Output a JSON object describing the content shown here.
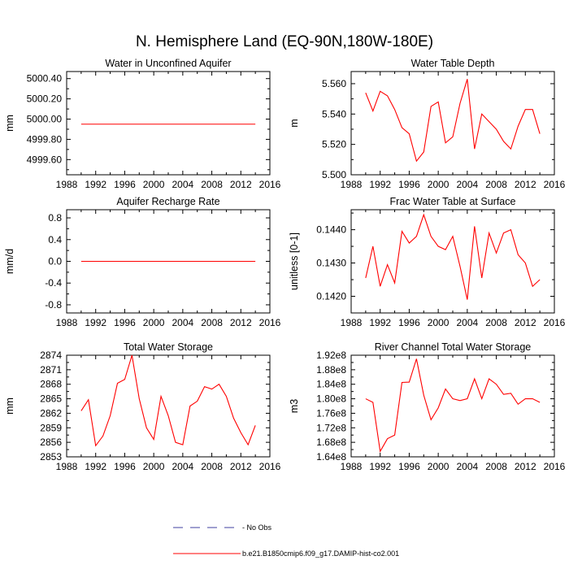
{
  "title": "N. Hemisphere Land (EQ-90N,180W-180E)",
  "colors": {
    "model_line": "#ff0000",
    "obs_line": "#4040a0",
    "axes": "#000000"
  },
  "legend": {
    "placement": "bottom-center",
    "entries": [
      {
        "label": "No Obs",
        "style": "dashed",
        "color": "#4040a0"
      },
      {
        "label": "b.e21.B1850cmip6.f09_g17.DAMIP-hist-co2.001",
        "style": "solid",
        "color": "#ff0000"
      }
    ]
  },
  "chart_data": [
    {
      "type": "line",
      "title": "Water in Unconfined Aquifer",
      "ylabel": "mm",
      "xlim": [
        1988,
        2016
      ],
      "ylim": [
        4999.45,
        5000.47
      ],
      "xticks": [
        "1988",
        "1992",
        "1996",
        "2000",
        "2004",
        "2008",
        "2012",
        "2016"
      ],
      "yticks": [
        "5000.40",
        "5000.20",
        "5000.00",
        "4999.80",
        "4999.60"
      ],
      "series": [
        {
          "x": [
            1990,
            1991,
            1992,
            1993,
            1994,
            1995,
            1996,
            1997,
            1998,
            1999,
            2000,
            2001,
            2002,
            2003,
            2004,
            2005,
            2006,
            2007,
            2008,
            2009,
            2010,
            2011,
            2012,
            2013,
            2014
          ],
          "y": [
            4999.95,
            4999.95,
            4999.95,
            4999.95,
            4999.95,
            4999.95,
            4999.95,
            4999.95,
            4999.95,
            4999.95,
            4999.95,
            4999.95,
            4999.95,
            4999.95,
            4999.95,
            4999.95,
            4999.95,
            4999.95,
            4999.95,
            4999.95,
            4999.95,
            4999.95,
            4999.95,
            4999.95,
            4999.95
          ]
        }
      ]
    },
    {
      "type": "line",
      "title": "Water Table Depth",
      "ylabel": "m",
      "xlim": [
        1988,
        2016
      ],
      "ylim": [
        5.5,
        5.568
      ],
      "xticks": [
        "1988",
        "1992",
        "1996",
        "2000",
        "2004",
        "2008",
        "2012",
        "2016"
      ],
      "yticks": [
        "5.560",
        "5.540",
        "5.520",
        "5.500"
      ],
      "series": [
        {
          "x": [
            1990,
            1991,
            1992,
            1993,
            1994,
            1995,
            1996,
            1997,
            1998,
            1999,
            2000,
            2001,
            2002,
            2003,
            2004,
            2005,
            2006,
            2007,
            2008,
            2009,
            2010,
            2011,
            2012,
            2013,
            2014
          ],
          "y": [
            5.554,
            5.542,
            5.555,
            5.552,
            5.543,
            5.531,
            5.527,
            5.509,
            5.515,
            5.545,
            5.548,
            5.521,
            5.525,
            5.547,
            5.563,
            5.517,
            5.54,
            5.535,
            5.53,
            5.522,
            5.517,
            5.532,
            5.543,
            5.543,
            5.527
          ]
        }
      ]
    },
    {
      "type": "line",
      "title": "Aquifer Recharge Rate",
      "ylabel": "mm/d",
      "xlim": [
        1988,
        2016
      ],
      "ylim": [
        -0.95,
        0.95
      ],
      "xticks": [
        "1988",
        "1992",
        "1996",
        "2000",
        "2004",
        "2008",
        "2012",
        "2016"
      ],
      "yticks": [
        "0.8",
        "0.4",
        "0.0",
        "-0.4",
        "-0.8"
      ],
      "series": [
        {
          "x": [
            1990,
            1991,
            1992,
            1993,
            1994,
            1995,
            1996,
            1997,
            1998,
            1999,
            2000,
            2001,
            2002,
            2003,
            2004,
            2005,
            2006,
            2007,
            2008,
            2009,
            2010,
            2011,
            2012,
            2013,
            2014
          ],
          "y": [
            0,
            0,
            0,
            0,
            0,
            0,
            0,
            0,
            0,
            0,
            0,
            0,
            0,
            0,
            0,
            0,
            0,
            0,
            0,
            0,
            0,
            0,
            0,
            0,
            0
          ]
        }
      ]
    },
    {
      "type": "line",
      "title": "Frac Water Table at Surface",
      "ylabel": "unitless [0-1]",
      "xlim": [
        1988,
        2016
      ],
      "ylim": [
        0.1415,
        0.1446
      ],
      "xticks": [
        "1988",
        "1992",
        "1996",
        "2000",
        "2004",
        "2008",
        "2012",
        "2016"
      ],
      "yticks": [
        "0.1440",
        "0.1430",
        "0.1420"
      ],
      "series": [
        {
          "x": [
            1990,
            1991,
            1992,
            1993,
            1994,
            1995,
            1996,
            1997,
            1998,
            1999,
            2000,
            2001,
            2002,
            2003,
            2004,
            2005,
            2006,
            2007,
            2008,
            2009,
            2010,
            2011,
            2012,
            2013,
            2014
          ],
          "y": [
            0.14255,
            0.1435,
            0.1423,
            0.14295,
            0.1424,
            0.14395,
            0.1436,
            0.1438,
            0.14445,
            0.1438,
            0.1435,
            0.1434,
            0.1438,
            0.1429,
            0.1419,
            0.1441,
            0.14255,
            0.1439,
            0.1433,
            0.1439,
            0.144,
            0.14325,
            0.143,
            0.1423,
            0.1425
          ]
        }
      ]
    },
    {
      "type": "line",
      "title": "Total Water Storage",
      "ylabel": "mm",
      "xlim": [
        1988,
        2016
      ],
      "ylim": [
        2853,
        2874
      ],
      "xticks": [
        "1988",
        "1992",
        "1996",
        "2000",
        "2004",
        "2008",
        "2012",
        "2016"
      ],
      "yticks": [
        "2874",
        "2871",
        "2868",
        "2865",
        "2862",
        "2859",
        "2856",
        "2853"
      ],
      "series": [
        {
          "x": [
            1990,
            1991,
            1992,
            1993,
            1994,
            1995,
            1996,
            1997,
            1998,
            1999,
            2000,
            2001,
            2002,
            2003,
            2004,
            2005,
            2006,
            2007,
            2008,
            2009,
            2010,
            2011,
            2012,
            2013,
            2014
          ],
          "y": [
            2862.5,
            2864.8,
            2855.3,
            2857.3,
            2861.5,
            2868.2,
            2869.0,
            2874.0,
            2865.0,
            2859.0,
            2856.6,
            2865.5,
            2861.5,
            2856.0,
            2855.5,
            2863.5,
            2864.5,
            2867.5,
            2867.0,
            2868.0,
            2865.5,
            2861.0,
            2858.0,
            2855.5,
            2859.5
          ]
        }
      ]
    },
    {
      "type": "line",
      "title": "River Channel Total Water Storage",
      "ylabel": "m3",
      "xlim": [
        1988,
        2016
      ],
      "ylim": [
        164000000.0,
        192000000.0
      ],
      "xticks": [
        "1988",
        "1992",
        "1996",
        "2000",
        "2004",
        "2008",
        "2012",
        "2016"
      ],
      "yticks": [
        "1.92e8",
        "1.88e8",
        "1.84e8",
        "1.80e8",
        "1.76e8",
        "1.72e8",
        "1.68e8",
        "1.64e8"
      ],
      "series": [
        {
          "x": [
            1990,
            1991,
            1992,
            1993,
            1994,
            1995,
            1996,
            1997,
            1998,
            1999,
            2000,
            2001,
            2002,
            2003,
            2004,
            2005,
            2006,
            2007,
            2008,
            2009,
            2010,
            2011,
            2012,
            2013,
            2014
          ],
          "y": [
            180000000.0,
            179000000.0,
            165500000.0,
            169000000.0,
            170000000.0,
            184500000.0,
            184600000.0,
            191000000.0,
            181000000.0,
            174200000.0,
            177500000.0,
            182700000.0,
            180000000.0,
            179500000.0,
            180000000.0,
            185500000.0,
            180000000.0,
            185500000.0,
            184000000.0,
            181200000.0,
            181500000.0,
            178500000.0,
            180000000.0,
            180000000.0,
            179000000.0
          ]
        }
      ]
    }
  ]
}
